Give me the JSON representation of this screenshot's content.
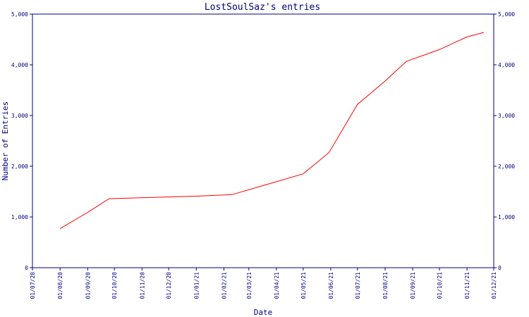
{
  "chart_data": {
    "type": "line",
    "title": "LostSoulSaz's entries",
    "xlabel": "Date",
    "ylabel": "Number of Entries",
    "x_tick_labels": [
      "01/07/20",
      "01/08/20",
      "01/09/20",
      "01/10/20",
      "01/11/20",
      "01/12/20",
      "01/01/21",
      "01/02/21",
      "01/03/21",
      "01/04/21",
      "01/05/21",
      "01/06/21",
      "01/07/21",
      "01/08/21",
      "01/09/21",
      "01/10/21",
      "01/11/21",
      "01/12/21"
    ],
    "y_ticks": [
      0,
      1000,
      2000,
      3000,
      4000,
      5000
    ],
    "y_tick_labels": [
      "0",
      "1,000",
      "2,000",
      "3,000",
      "4,000",
      "5,000"
    ],
    "ylim": [
      0,
      5000
    ],
    "xlim": [
      "2020-07-01",
      "2021-12-01"
    ],
    "grid": false,
    "colors": {
      "axis": "#000080",
      "series": "#ff0000"
    },
    "series": [
      {
        "x": [
          "2020-08-01",
          "2020-09-01",
          "2020-09-25",
          "2020-11-01",
          "2020-12-01",
          "2021-01-01",
          "2021-02-10",
          "2021-03-25",
          "2021-05-01",
          "2021-05-30",
          "2021-07-01",
          "2021-08-01",
          "2021-08-25",
          "2021-10-01",
          "2021-11-01",
          "2021-11-20"
        ],
        "values": [
          770,
          1090,
          1360,
          1380,
          1395,
          1410,
          1440,
          1660,
          1850,
          2270,
          3220,
          3680,
          4070,
          4300,
          4550,
          4640
        ]
      }
    ]
  }
}
